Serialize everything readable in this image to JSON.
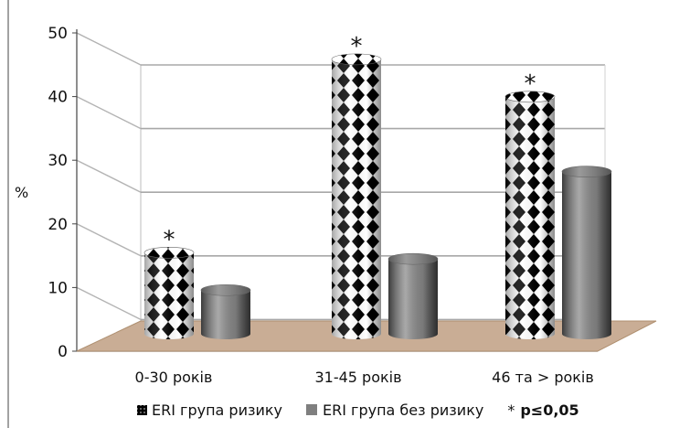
{
  "chart_data": {
    "type": "bar",
    "style": "3d-cylinder",
    "title": "",
    "xlabel": "",
    "ylabel": "%",
    "ylim": [
      0,
      50
    ],
    "yticks": [
      "0",
      "10",
      "20",
      "30",
      "40",
      "50"
    ],
    "categories": [
      "0-30 років",
      "31-45 років",
      "46 та > років"
    ],
    "series": [
      {
        "name": "ERI група ризику",
        "values": [
          13,
          44,
          38
        ],
        "color": "#000000",
        "pattern": "checker"
      },
      {
        "name": "ERI група без ризику",
        "values": [
          7,
          12,
          26
        ],
        "color": "#7f7f7f"
      }
    ],
    "significance_markers": [
      "*",
      "*",
      "*"
    ],
    "grid": true,
    "floor_color": "#c9ad95",
    "legend_position": "bottom"
  },
  "legend": {
    "series1": "ERI група ризику",
    "series2": "ERI група без ризику",
    "note_symbol": "*",
    "note_text": "p≤0,05"
  }
}
